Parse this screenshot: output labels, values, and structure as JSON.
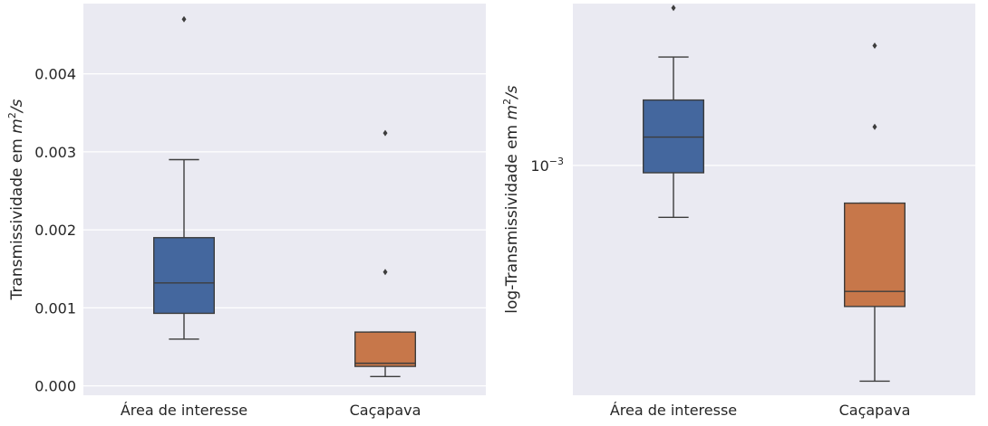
{
  "chart_data": [
    {
      "type": "box",
      "ylabel_text": "Transmissividade em ",
      "ylabel_unit": "m",
      "ylabel_exp": "2",
      "ylabel_tail": "/s",
      "ylim": [
        -0.00012,
        0.0049
      ],
      "yticks": [
        0.0,
        0.001,
        0.002,
        0.003,
        0.004
      ],
      "ytick_labels": [
        "0.000",
        "0.001",
        "0.002",
        "0.003",
        "0.004"
      ],
      "yscale": "linear",
      "grid": true,
      "categories": [
        "Área de interesse",
        "Caçapava"
      ],
      "colors": [
        "#4c72b0",
        "#dd8452"
      ],
      "boxes": [
        {
          "whislo": 0.0006,
          "q1": 0.00093,
          "med": 0.00132,
          "q3": 0.0019,
          "whishi": 0.0029,
          "fliers": [
            0.0047
          ]
        },
        {
          "whislo": 0.00012,
          "q1": 0.00025,
          "med": 0.00029,
          "q3": 0.00069,
          "whishi": 0.00069,
          "fliers": [
            0.00146,
            0.00324
          ]
        }
      ]
    },
    {
      "type": "box",
      "ylabel_text": "log-Transmissividade em ",
      "ylabel_unit": "m",
      "ylabel_exp": "2",
      "ylabel_tail": "/s",
      "ylim": [
        0.0001045,
        0.0049
      ],
      "yticks": [
        0.001
      ],
      "ytick_labels_base": [
        "10"
      ],
      "ytick_labels_exp": [
        "−3"
      ],
      "yscale": "log",
      "grid": true,
      "categories": [
        "Área de interesse",
        "Caçapava"
      ],
      "colors": [
        "#4c72b0",
        "#dd8452"
      ],
      "boxes": [
        {
          "whislo": 0.0006,
          "q1": 0.00093,
          "med": 0.00132,
          "q3": 0.0019,
          "whishi": 0.0029,
          "fliers": [
            0.0047
          ]
        },
        {
          "whislo": 0.00012,
          "q1": 0.00025,
          "med": 0.00029,
          "q3": 0.00069,
          "whishi": 0.00069,
          "fliers": [
            0.00146,
            0.00324
          ]
        }
      ]
    }
  ]
}
